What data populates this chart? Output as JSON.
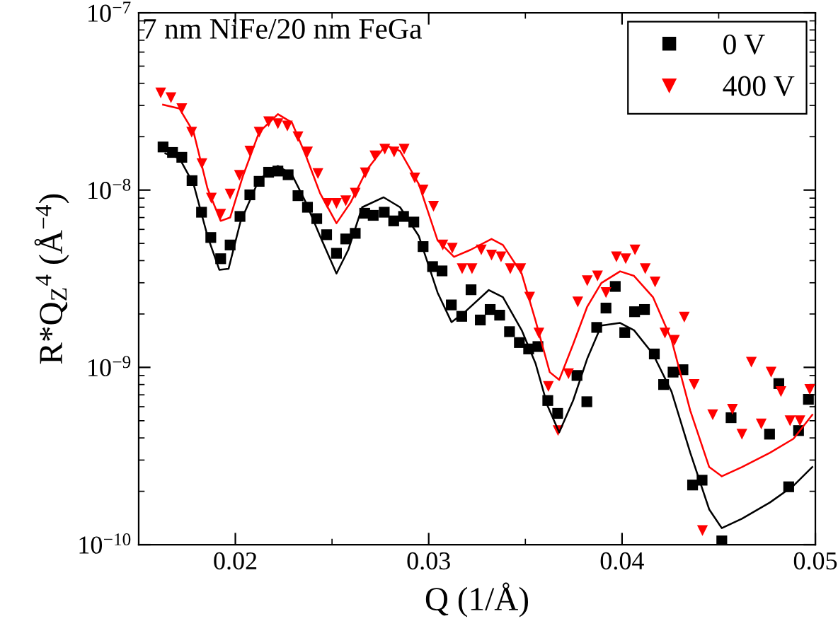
{
  "chart_data": {
    "type": "scatter",
    "title": "7 nm NiFe/20 nm FeGa",
    "xlabel": "Q (1/Å)",
    "ylabel": "R*Q$_{Z}$$^{4}$ (Å$^{−4}$)",
    "log": "y",
    "xlim": [
      0.015,
      0.05
    ],
    "xticks": [
      {
        "value": 0.02,
        "label": "0.02"
      },
      {
        "value": 0.03,
        "label": "0.03"
      },
      {
        "value": 0.04,
        "label": "0.04"
      },
      {
        "value": 0.05,
        "label": "0.05"
      }
    ],
    "ylim": [
      1e-10,
      1e-07
    ],
    "yticks": [
      {
        "value": 1e-10,
        "label": "10$^{−10}$"
      },
      {
        "value": 1e-09,
        "label": "10$^{−9}$"
      },
      {
        "value": 1e-08,
        "label": "10$^{−8}$"
      },
      {
        "value": 1e-07,
        "label": "10$^{−7}$"
      }
    ],
    "grid": false,
    "legend": "top right",
    "series": [
      {
        "name": "0 V",
        "marker": "square",
        "color": "#000000",
        "x": [
          0.01626,
          0.01675,
          0.01723,
          0.01776,
          0.01825,
          0.01873,
          0.01924,
          0.01973,
          0.02024,
          0.02075,
          0.02123,
          0.02172,
          0.0222,
          0.02273,
          0.02324,
          0.02373,
          0.02421,
          0.02472,
          0.02523,
          0.02571,
          0.0262,
          0.02669,
          0.02713,
          0.0277,
          0.02819,
          0.0287,
          0.02923,
          0.02971,
          0.0302,
          0.03069,
          0.03117,
          0.03171,
          0.03219,
          0.03267,
          0.03318,
          0.03367,
          0.03418,
          0.03469,
          0.03517,
          0.03565,
          0.03616,
          0.03667,
          0.03767,
          0.03818,
          0.03869,
          0.03917,
          0.03965,
          0.04014,
          0.04065,
          0.04116,
          0.04167,
          0.04215,
          0.04264,
          0.04315,
          0.04365,
          0.04414,
          0.04516,
          0.04564,
          0.04763,
          0.04811,
          0.04862,
          0.04913,
          0.04964
        ],
        "values": [
          1.75e-08,
          1.63e-08,
          1.53e-08,
          1.13e-08,
          7.5e-09,
          5.4e-09,
          4.1e-09,
          4.9e-09,
          7.1e-09,
          9.4e-09,
          1.12e-08,
          1.26e-08,
          1.28e-08,
          1.22e-08,
          9.3e-09,
          8e-09,
          6.9e-09,
          5.6e-09,
          4.4e-09,
          5.3e-09,
          5.7e-09,
          7.4e-09,
          7.2e-09,
          7.5e-09,
          6.7e-09,
          7.1e-09,
          6.6e-09,
          4.8e-09,
          3.7e-09,
          3.5e-09,
          2.25e-09,
          1.94e-09,
          2.74e-09,
          1.85e-09,
          2.12e-09,
          1.97e-09,
          1.59e-09,
          1.38e-09,
          1.27e-09,
          1.31e-09,
          6.5e-10,
          5.5e-10,
          9e-10,
          6.4e-10,
          1.68e-09,
          2.16e-09,
          2.86e-09,
          1.57e-09,
          2.06e-09,
          2.12e-09,
          1.19e-09,
          8e-10,
          9.4e-10,
          9.7e-10,
          2.17e-10,
          2.31e-10,
          1.05e-10,
          5.2e-10,
          4.2e-10,
          8.1e-10,
          2.12e-10,
          4.4e-10,
          6.6e-10
        ]
      },
      {
        "name": "400 V",
        "marker": "triangle",
        "color": "#ff0000",
        "x": [
          0.01614,
          0.01667,
          0.01723,
          0.01774,
          0.01827,
          0.01876,
          0.01924,
          0.01973,
          0.02021,
          0.02075,
          0.02123,
          0.02172,
          0.0222,
          0.02269,
          0.02324,
          0.02373,
          0.02427,
          0.02476,
          0.02523,
          0.02571,
          0.0262,
          0.02672,
          0.02722,
          0.02773,
          0.02821,
          0.02873,
          0.02928,
          0.02971,
          0.03025,
          0.03073,
          0.03122,
          0.03173,
          0.03224,
          0.03272,
          0.03325,
          0.03374,
          0.03422,
          0.03476,
          0.03522,
          0.0357,
          0.03619,
          0.03669,
          0.03723,
          0.03771,
          0.0382,
          0.03873,
          0.03917,
          0.03971,
          0.04019,
          0.04067,
          0.0412,
          0.04171,
          0.04222,
          0.04271,
          0.04322,
          0.04373,
          0.04416,
          0.04469,
          0.04571,
          0.0462,
          0.04669,
          0.0472,
          0.04771,
          0.04822,
          0.04869,
          0.0492,
          0.04971
        ],
        "values": [
          3.53e-08,
          3.32e-08,
          2.88e-08,
          2.12e-08,
          1.41e-08,
          9e-09,
          7.3e-09,
          9.5e-09,
          1.21e-08,
          1.66e-08,
          2.12e-08,
          2.43e-08,
          2.37e-08,
          2.3e-08,
          2e-08,
          1.64e-08,
          1.24e-08,
          8.4e-09,
          8.4e-09,
          8.7e-09,
          9.6e-09,
          1.25e-08,
          1.56e-08,
          1.7e-08,
          1.64e-08,
          1.7e-08,
          1.17e-08,
          1e-08,
          8.1e-09,
          4.9e-09,
          4.7e-09,
          3.6e-09,
          3.6e-09,
          4.6e-09,
          4.3e-09,
          4.2e-09,
          3.6e-09,
          3.6e-09,
          2.49e-09,
          1.56e-09,
          7.8e-10,
          4.4e-10,
          9.2e-10,
          2.34e-09,
          3.08e-09,
          3.28e-09,
          2.64e-09,
          4.2e-09,
          4.1e-09,
          4.6e-09,
          3.6e-09,
          3.03e-09,
          1.56e-09,
          1.42e-09,
          1.92e-09,
          8e-10,
          1.2e-10,
          5.4e-10,
          5.8e-10,
          4.2e-10,
          1.07e-09,
          4.8e-10,
          9.4e-10,
          7.3e-10,
          5e-10,
          5e-10,
          7.5e-10
        ]
      },
      {
        "type": "line",
        "marker": "none",
        "line_style": "solid",
        "color": "#000000",
        "x": [
          0.01638,
          0.01711,
          0.01784,
          0.01856,
          0.01917,
          0.01965,
          0.02026,
          0.02123,
          0.0222,
          0.02293,
          0.02365,
          0.02438,
          0.02523,
          0.02584,
          0.02656,
          0.02767,
          0.02852,
          0.02949,
          0.03046,
          0.03118,
          0.03191,
          0.03311,
          0.03384,
          0.03481,
          0.03553,
          0.03614,
          0.03675,
          0.03747,
          0.0382,
          0.03893,
          0.0399,
          0.04062,
          0.0416,
          0.04256,
          0.04353,
          0.04451,
          0.04516,
          0.0462,
          0.04765,
          0.04887,
          0.04984
        ],
        "values": [
          1.61e-08,
          1.51e-08,
          1.08e-08,
          5.5e-09,
          3.55e-09,
          3.6e-09,
          6.6e-09,
          1.15e-08,
          1.37e-08,
          1.22e-08,
          8.5e-09,
          5.5e-09,
          3.38e-09,
          4.6e-09,
          8e-09,
          9.1e-09,
          8e-09,
          5.5e-09,
          2.64e-09,
          1.8e-09,
          2.07e-09,
          2.73e-09,
          2.49e-09,
          1.62e-09,
          1.05e-09,
          6.1e-10,
          4.3e-10,
          6.5e-10,
          1.12e-09,
          1.72e-09,
          1.78e-09,
          1.62e-09,
          1.19e-09,
          7.3e-10,
          3.3e-10,
          1.58e-10,
          1.24e-10,
          1.4e-10,
          1.73e-10,
          2.15e-10,
          2.74e-10
        ]
      },
      {
        "type": "line",
        "marker": "none",
        "line_style": "solid",
        "color": "#ff0000",
        "x": [
          0.01626,
          0.01711,
          0.01784,
          0.01856,
          0.01924,
          0.01973,
          0.02038,
          0.02123,
          0.0222,
          0.02293,
          0.02365,
          0.02438,
          0.02523,
          0.02596,
          0.0268,
          0.02778,
          0.02852,
          0.02949,
          0.03046,
          0.03131,
          0.03216,
          0.03325,
          0.03384,
          0.03481,
          0.03553,
          0.03626,
          0.03675,
          0.03747,
          0.0382,
          0.03893,
          0.0399,
          0.04062,
          0.0416,
          0.04256,
          0.04353,
          0.04451,
          0.04516,
          0.0462,
          0.04765,
          0.04887,
          0.04984
        ],
        "values": [
          3.03e-08,
          2.88e-08,
          2.12e-08,
          1.02e-08,
          6.7e-09,
          7e-09,
          1.19e-08,
          2.12e-08,
          2.68e-08,
          2.4e-08,
          1.56e-08,
          9.6e-09,
          6.5e-09,
          8.5e-09,
          1.3e-08,
          1.79e-08,
          1.66e-08,
          1.08e-08,
          5.2e-09,
          4.2e-09,
          4.6e-09,
          5.3e-09,
          4.9e-09,
          3.38e-09,
          1.83e-09,
          9.4e-10,
          8.5e-10,
          1.35e-09,
          2.2e-09,
          2.99e-09,
          3.48e-09,
          3.28e-09,
          2.49e-09,
          1.43e-09,
          5.7e-10,
          2.74e-10,
          2.43e-10,
          2.74e-10,
          3.3e-10,
          3.96e-10,
          5.4e-10
        ]
      }
    ]
  }
}
